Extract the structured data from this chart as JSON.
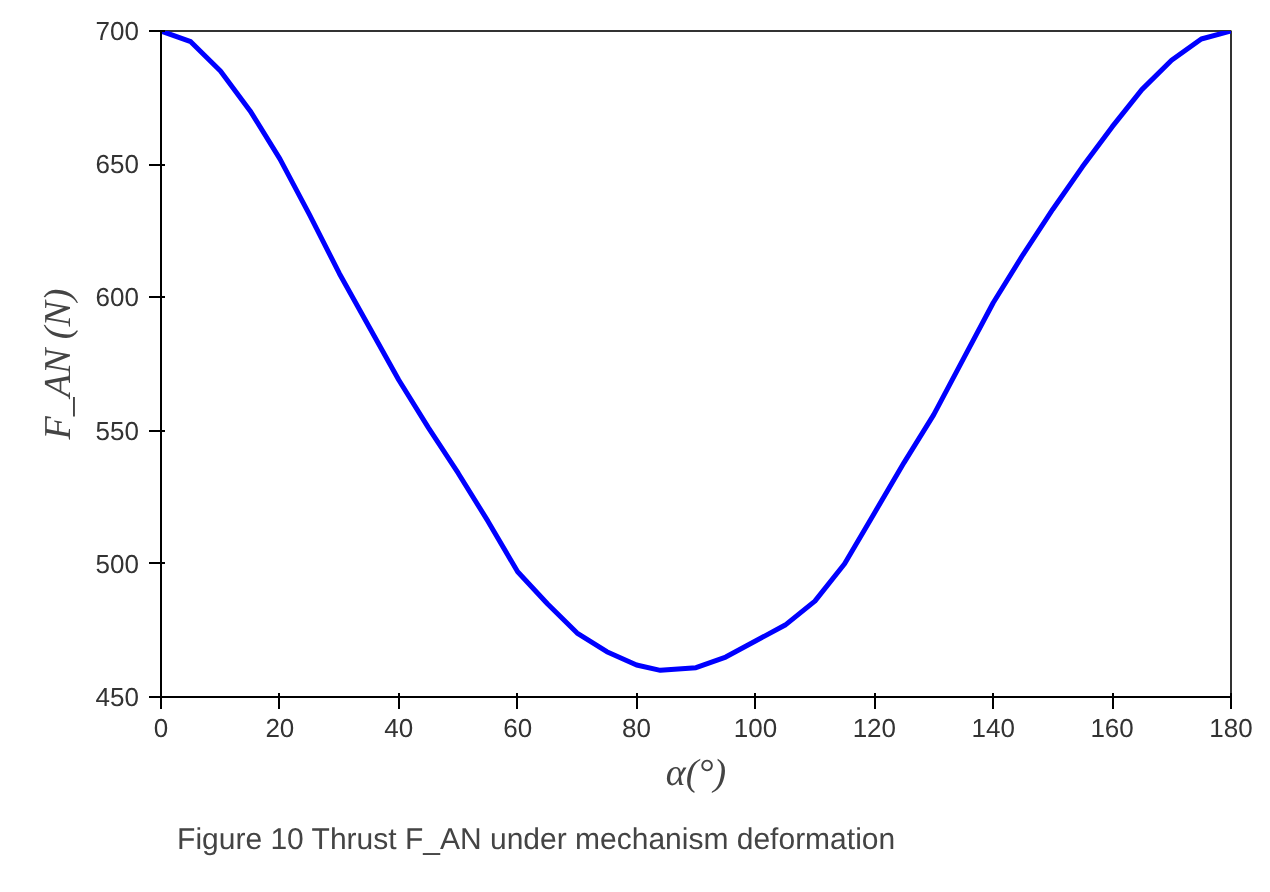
{
  "chart_data": {
    "type": "line",
    "xlabel": "α(°)",
    "ylabel": "F_AN (N)",
    "annotations": [
      "Figure 10  Thrust F_AN under mechanism deformation"
    ],
    "series": [
      {
        "color": "#0000ff",
        "x": [
          0,
          5,
          10,
          15,
          20,
          25,
          30,
          35,
          40,
          45,
          50,
          55,
          60,
          65,
          70,
          75,
          80,
          84,
          90,
          95,
          100,
          105,
          110,
          115,
          120,
          125,
          130,
          135,
          140,
          145,
          150,
          155,
          160,
          165,
          170,
          175,
          180
        ],
        "values": [
          700,
          696,
          685,
          670,
          652,
          631,
          609,
          589,
          569,
          551,
          534,
          516,
          497,
          485,
          474,
          467,
          462,
          460,
          461,
          465,
          471,
          477,
          486,
          500,
          519,
          538,
          556,
          577,
          598,
          616,
          633,
          649,
          664,
          678,
          689,
          697,
          700
        ]
      }
    ],
    "xlim": [
      0,
      180
    ],
    "ylim": [
      450,
      700
    ],
    "xticks": [
      0,
      20,
      40,
      60,
      80,
      100,
      120,
      140,
      160,
      180
    ],
    "yticks": [
      450,
      500,
      550,
      600,
      650,
      700
    ],
    "grid": false
  }
}
